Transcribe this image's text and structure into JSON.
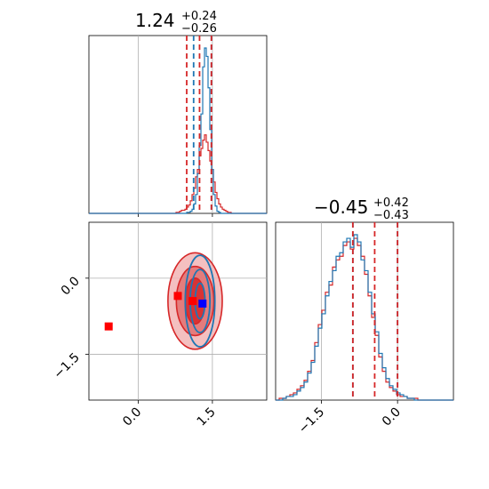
{
  "chart_data": {
    "type": "corner",
    "parameters": [
      {
        "title_value": "1.24",
        "title_upper": "+0.24",
        "title_lower": "−0.26",
        "range": [
          -1.0,
          2.6
        ],
        "tick_values": [
          0.0,
          1.5
        ],
        "tick_labels": [
          "0.0",
          "1.5"
        ],
        "quantiles": {
          "red": [
            0.98,
            1.24,
            1.48
          ],
          "blue": [
            1.12,
            1.48
          ]
        }
      },
      {
        "title_value": "−0.45",
        "title_upper": "+0.42",
        "title_lower": "−0.43",
        "range": [
          -2.4,
          1.1
        ],
        "tick_values": [
          -1.5,
          0.0
        ],
        "tick_labels": [
          "−1.5",
          "0.0"
        ],
        "quantiles": {
          "red": [
            -0.88,
            -0.45,
            0.0
          ],
          "blue": [
            -0.88,
            0.0
          ]
        }
      }
    ],
    "series": [
      {
        "color": "#1f77b4",
        "hist_param1": {
          "bin_start": -1.0,
          "bin_width": 0.036,
          "counts": [
            0,
            0,
            0,
            0,
            0,
            0,
            0,
            0,
            0,
            0,
            0,
            0,
            0,
            0,
            0,
            0,
            0,
            0,
            0,
            0,
            0,
            0,
            0,
            0,
            0,
            0,
            0,
            0,
            0,
            0,
            0,
            0,
            0,
            0,
            0,
            0,
            0,
            0,
            0,
            0,
            0,
            0,
            0,
            0,
            0,
            0,
            0,
            0,
            0,
            0,
            0,
            0,
            0,
            0,
            0,
            1,
            1,
            2,
            4,
            9,
            18,
            38,
            65,
            95,
            140,
            158,
            150,
            120,
            80,
            42,
            18,
            7,
            2,
            1,
            0,
            0,
            0,
            0,
            0,
            0,
            0,
            0,
            0,
            0,
            0,
            0,
            0,
            0,
            0,
            0,
            0,
            0,
            0,
            0,
            0,
            0,
            0,
            0,
            0,
            0
          ]
        },
        "hist_param2": {
          "bin_start": -2.4,
          "bin_width": 0.07,
          "counts": [
            0,
            0,
            1,
            2,
            2,
            3,
            5,
            7,
            10,
            15,
            21,
            30,
            40,
            48,
            58,
            66,
            72,
            80,
            82,
            88,
            90,
            85,
            92,
            88,
            78,
            72,
            60,
            48,
            38,
            26,
            18,
            12,
            8,
            6,
            4,
            3,
            2,
            1,
            1,
            0,
            0,
            0,
            0,
            0,
            0,
            0,
            0,
            0,
            0,
            0
          ]
        },
        "marker": {
          "x": 1.3,
          "y": -0.5
        }
      },
      {
        "color": "#d62728",
        "hist_param1": {
          "bin_start": -1.0,
          "bin_width": 0.036,
          "counts": [
            0,
            0,
            0,
            0,
            0,
            0,
            0,
            0,
            0,
            0,
            0,
            0,
            0,
            0,
            0,
            0,
            0,
            0,
            0,
            0,
            0,
            0,
            0,
            0,
            0,
            0,
            0,
            0,
            0,
            0,
            0,
            0,
            0,
            0,
            0,
            0,
            0,
            0,
            0,
            0,
            0,
            0,
            0,
            0,
            0,
            0,
            0,
            0,
            0,
            1,
            1,
            2,
            3,
            3,
            4,
            6,
            8,
            12,
            18,
            24,
            35,
            42,
            55,
            62,
            70,
            75,
            68,
            60,
            50,
            42,
            30,
            20,
            14,
            9,
            6,
            4,
            3,
            2,
            1,
            1,
            0,
            0,
            0,
            0,
            0,
            0,
            0,
            0,
            0,
            0,
            0,
            0,
            0,
            0,
            0,
            0,
            0,
            0,
            0,
            0
          ]
        },
        "hist_param2": {
          "bin_start": -2.4,
          "bin_width": 0.07,
          "counts": [
            0,
            1,
            1,
            2,
            3,
            4,
            6,
            8,
            11,
            16,
            22,
            32,
            42,
            50,
            60,
            64,
            74,
            78,
            80,
            86,
            88,
            84,
            90,
            86,
            80,
            70,
            58,
            46,
            36,
            24,
            16,
            10,
            7,
            5,
            3,
            2,
            2,
            1,
            1,
            1,
            0,
            0,
            0,
            0,
            0,
            0,
            0,
            0,
            0,
            0
          ]
        },
        "markers": [
          {
            "x": 0.8,
            "y": -0.35
          },
          {
            "x": 1.1,
            "y": -0.45
          },
          {
            "x": -0.6,
            "y": -0.95
          }
        ]
      }
    ],
    "grid": true,
    "legend": "none"
  }
}
